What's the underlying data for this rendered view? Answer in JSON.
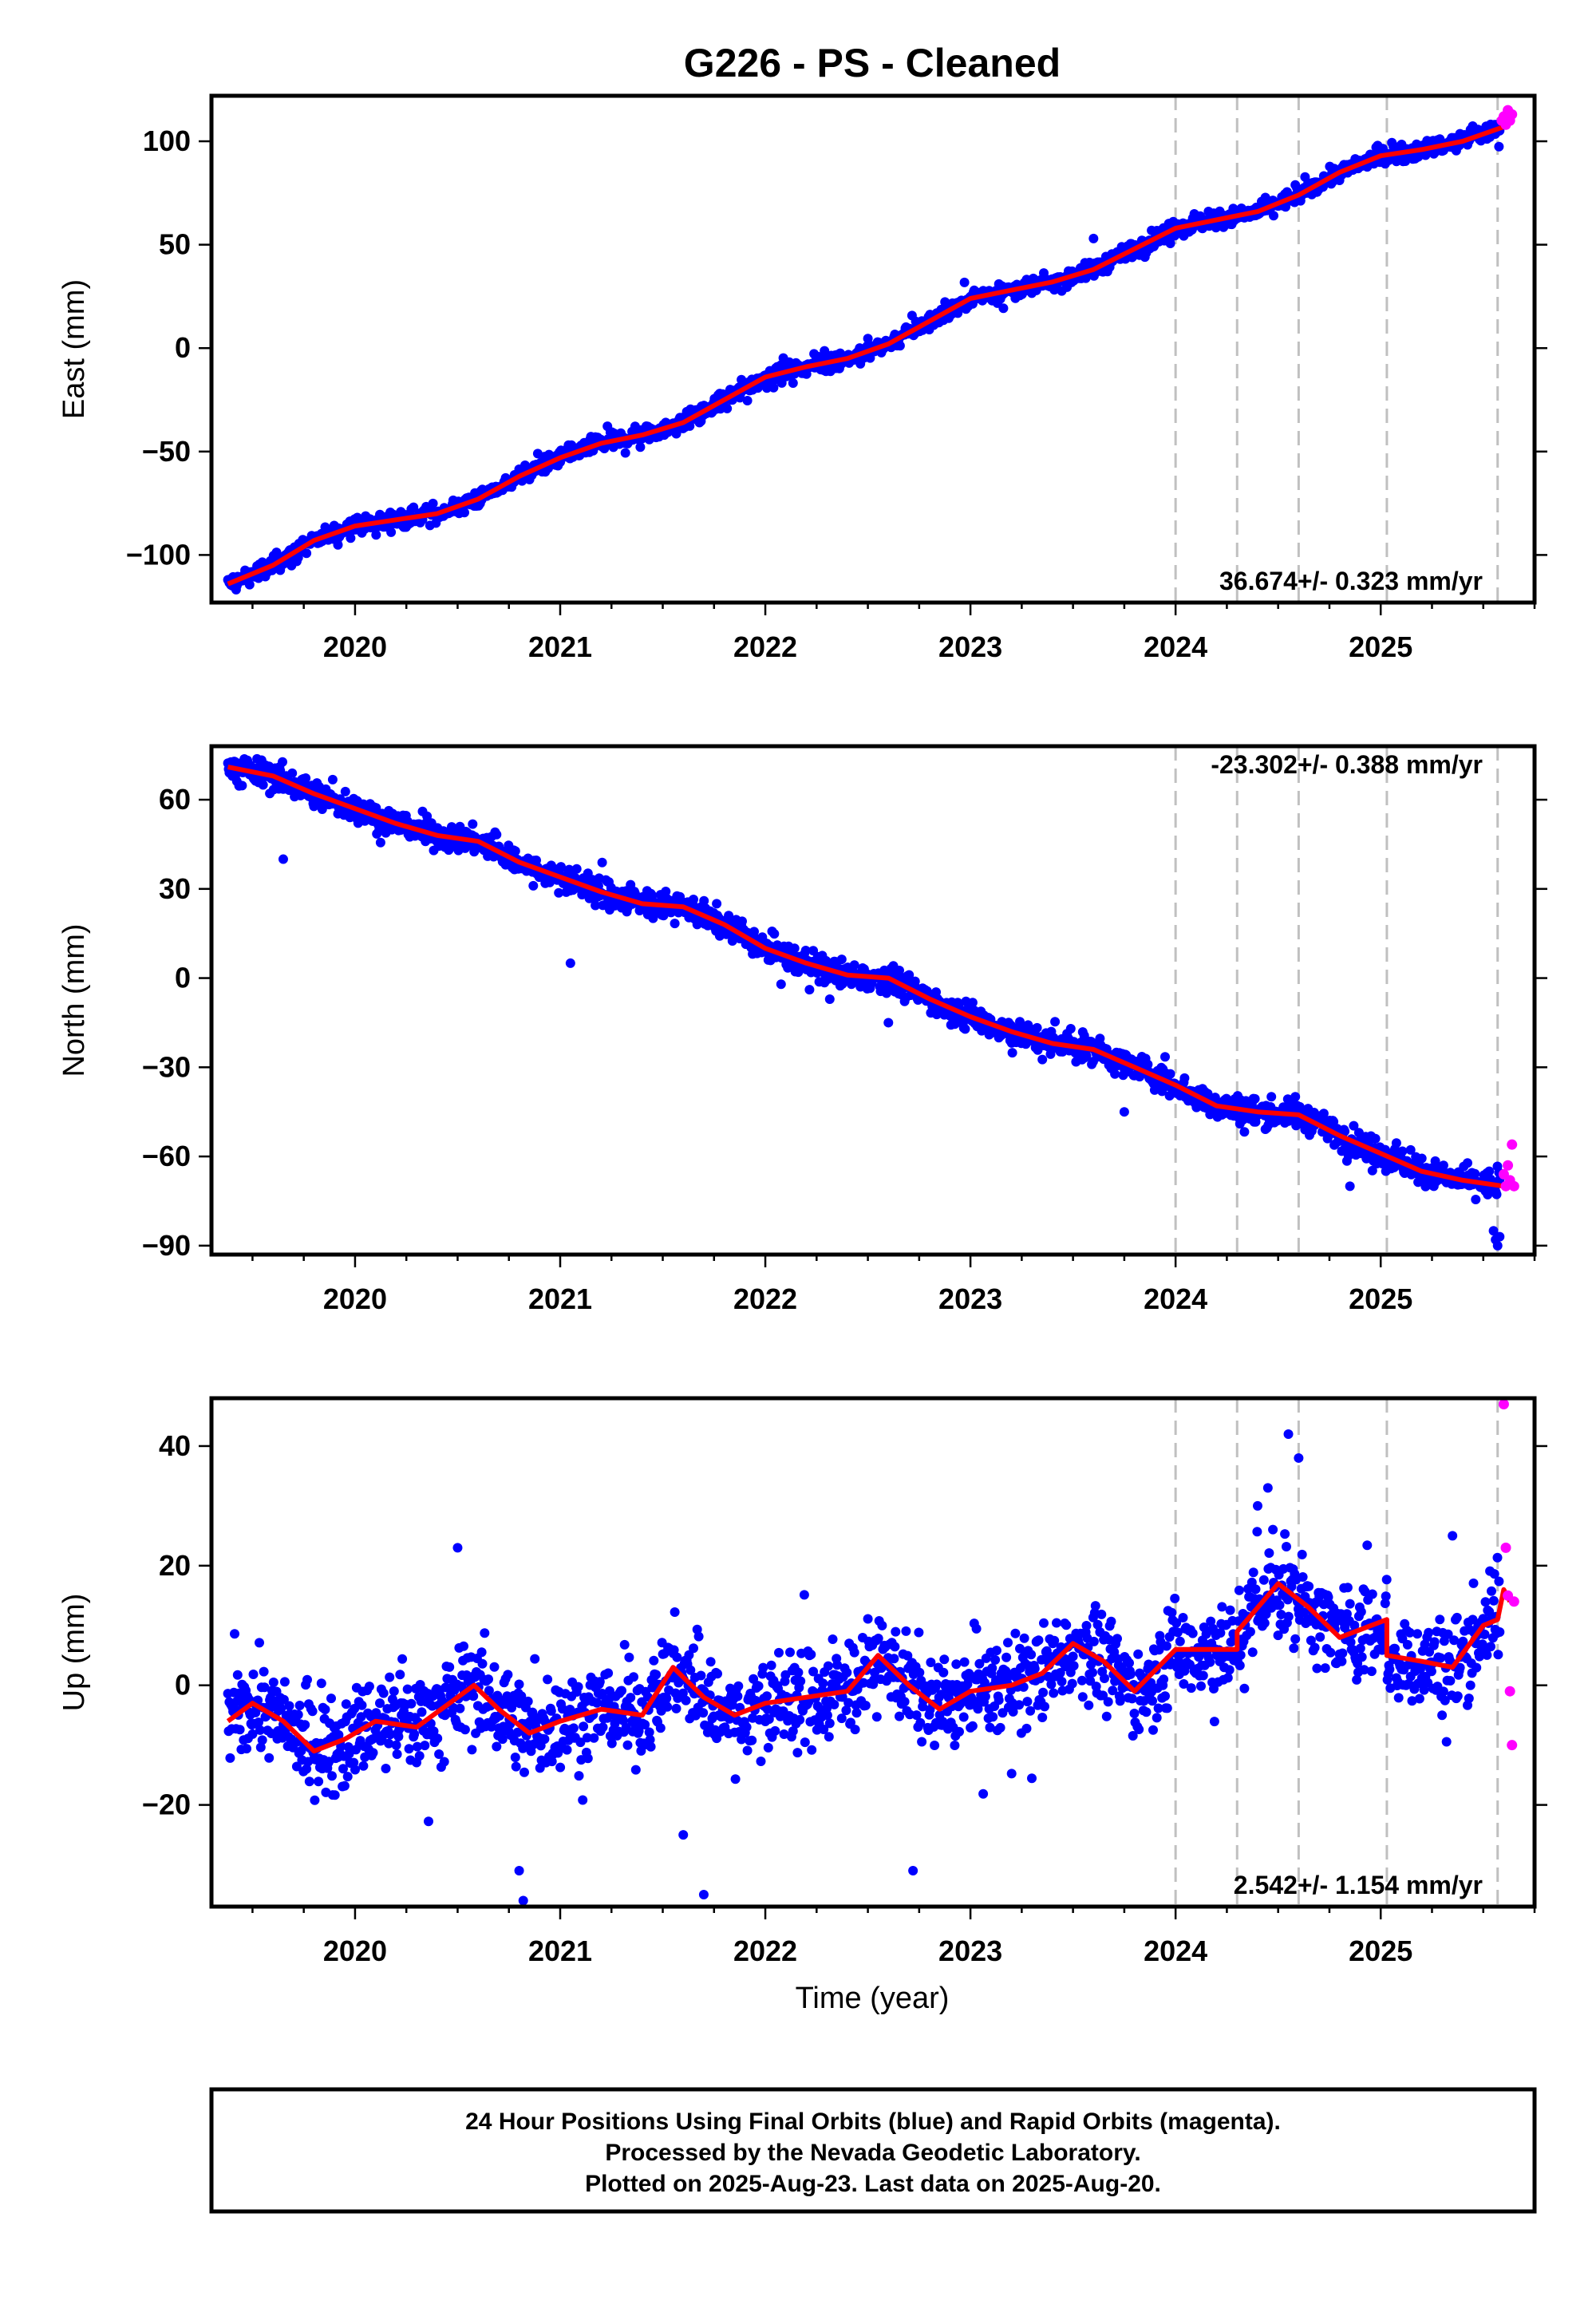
{
  "title": "G226  - PS - Cleaned",
  "colors": {
    "final_orbits": "#0000ff",
    "rapid_orbits": "#ff00ff",
    "model_line": "#ff0000",
    "event_lines": "#c0c0c0"
  },
  "x_axis": {
    "label": "Time (year)",
    "range": [
      2019.3,
      2025.75
    ],
    "ticks": [
      2020,
      2021,
      2022,
      2023,
      2024,
      2025
    ],
    "tick_labels": [
      "2020",
      "2021",
      "2022",
      "2023",
      "2024",
      "2025"
    ]
  },
  "event_lines": [
    2024.0,
    2024.3,
    2024.6,
    2025.03,
    2025.57
  ],
  "panels": [
    {
      "ylabel": "East (mm)",
      "ylim": [
        -123,
        122
      ],
      "yticks": [
        -100,
        -50,
        0,
        50,
        100
      ],
      "ytick_labels": [
        "−100",
        "−50",
        "0",
        "50",
        "100"
      ],
      "rate_label": "36.674+/- 0.323 mm/yr",
      "rate_position": "bottom-right",
      "legend_series": {
        "final": "final orbits",
        "rapid": "rapid orbits",
        "model": "model"
      },
      "model": [
        [
          2019.38,
          -114
        ],
        [
          2019.6,
          -105
        ],
        [
          2019.8,
          -93
        ],
        [
          2020.0,
          -86
        ],
        [
          2020.2,
          -83
        ],
        [
          2020.4,
          -80
        ],
        [
          2020.6,
          -73
        ],
        [
          2020.8,
          -62
        ],
        [
          2021.0,
          -53
        ],
        [
          2021.2,
          -46
        ],
        [
          2021.4,
          -42
        ],
        [
          2021.6,
          -36
        ],
        [
          2021.8,
          -25
        ],
        [
          2022.0,
          -14
        ],
        [
          2022.2,
          -9
        ],
        [
          2022.4,
          -5
        ],
        [
          2022.6,
          2
        ],
        [
          2022.8,
          13
        ],
        [
          2023.0,
          24
        ],
        [
          2023.2,
          28
        ],
        [
          2023.4,
          32
        ],
        [
          2023.6,
          38
        ],
        [
          2023.8,
          48
        ],
        [
          2024.0,
          58
        ],
        [
          2024.2,
          62
        ],
        [
          2024.4,
          66
        ],
        [
          2024.6,
          74
        ],
        [
          2024.8,
          85
        ],
        [
          2025.0,
          93
        ],
        [
          2025.2,
          96
        ],
        [
          2025.4,
          100
        ],
        [
          2025.6,
          107
        ]
      ],
      "noise": 2.8,
      "outliers": [
        [
          2023.6,
          53
        ]
      ],
      "rapid": [
        [
          2025.59,
          110
        ],
        [
          2025.6,
          112
        ],
        [
          2025.61,
          108
        ],
        [
          2025.62,
          115
        ],
        [
          2025.63,
          110
        ],
        [
          2025.64,
          113
        ]
      ]
    },
    {
      "ylabel": "North (mm)",
      "ylim": [
        -93,
        78
      ],
      "yticks": [
        -90,
        -60,
        -30,
        0,
        30,
        60
      ],
      "ytick_labels": [
        "−90",
        "−60",
        "−30",
        "0",
        "30",
        "60"
      ],
      "rate_label": "-23.302+/- 0.388 mm/yr",
      "rate_position": "top-right",
      "legend_series": {
        "final": "final orbits",
        "rapid": "rapid orbits",
        "model": "model"
      },
      "model": [
        [
          2019.38,
          71
        ],
        [
          2019.6,
          68
        ],
        [
          2019.8,
          62
        ],
        [
          2020.0,
          57
        ],
        [
          2020.2,
          52
        ],
        [
          2020.4,
          48
        ],
        [
          2020.6,
          46
        ],
        [
          2020.8,
          39
        ],
        [
          2021.0,
          34
        ],
        [
          2021.2,
          29
        ],
        [
          2021.4,
          25
        ],
        [
          2021.6,
          24
        ],
        [
          2021.8,
          18
        ],
        [
          2022.0,
          10
        ],
        [
          2022.2,
          5
        ],
        [
          2022.4,
          1
        ],
        [
          2022.6,
          0
        ],
        [
          2022.8,
          -7
        ],
        [
          2023.0,
          -13
        ],
        [
          2023.2,
          -18
        ],
        [
          2023.4,
          -22
        ],
        [
          2023.6,
          -24
        ],
        [
          2023.8,
          -30
        ],
        [
          2024.0,
          -36
        ],
        [
          2024.2,
          -43
        ],
        [
          2024.4,
          -45
        ],
        [
          2024.6,
          -46
        ],
        [
          2024.8,
          -53
        ],
        [
          2025.0,
          -59
        ],
        [
          2025.2,
          -65
        ],
        [
          2025.4,
          -68
        ],
        [
          2025.6,
          -70
        ]
      ],
      "noise": 3.2,
      "outliers": [
        [
          2019.65,
          40
        ],
        [
          2022.6,
          -15
        ],
        [
          2023.75,
          -45
        ],
        [
          2025.55,
          -85
        ],
        [
          2025.56,
          -88
        ],
        [
          2025.57,
          -90
        ],
        [
          2025.58,
          -87
        ],
        [
          2024.85,
          -70
        ],
        [
          2021.05,
          5
        ]
      ],
      "rapid": [
        [
          2025.6,
          -66
        ],
        [
          2025.61,
          -70
        ],
        [
          2025.62,
          -63
        ],
        [
          2025.63,
          -68
        ],
        [
          2025.64,
          -56
        ],
        [
          2025.65,
          -70
        ]
      ]
    },
    {
      "ylabel": "Up (mm)",
      "ylim": [
        -37,
        48
      ],
      "yticks": [
        -20,
        0,
        20,
        40
      ],
      "ytick_labels": [
        "−20",
        "0",
        "20",
        "40"
      ],
      "rate_label": "2.542+/- 1.154 mm/yr",
      "rate_position": "bottom-right",
      "legend_series": {
        "final": "final orbits",
        "rapid": "rapid orbits",
        "model": "model"
      },
      "model": [
        [
          2019.38,
          -6
        ],
        [
          2019.5,
          -3
        ],
        [
          2019.65,
          -6
        ],
        [
          2019.8,
          -11
        ],
        [
          2019.95,
          -9
        ],
        [
          2020.1,
          -6
        ],
        [
          2020.3,
          -7
        ],
        [
          2020.5,
          -2
        ],
        [
          2020.58,
          0
        ],
        [
          2020.7,
          -4
        ],
        [
          2020.85,
          -8
        ],
        [
          2021.0,
          -6
        ],
        [
          2021.2,
          -4
        ],
        [
          2021.4,
          -5
        ],
        [
          2021.55,
          3
        ],
        [
          2021.7,
          -2
        ],
        [
          2021.85,
          -5
        ],
        [
          2022.0,
          -3
        ],
        [
          2022.2,
          -2
        ],
        [
          2022.4,
          -1
        ],
        [
          2022.55,
          5
        ],
        [
          2022.7,
          0
        ],
        [
          2022.85,
          -4
        ],
        [
          2023.0,
          -1
        ],
        [
          2023.2,
          0
        ],
        [
          2023.35,
          2
        ],
        [
          2023.5,
          7
        ],
        [
          2023.65,
          4
        ],
        [
          2023.8,
          -1
        ],
        [
          2024.0,
          6
        ],
        [
          2024.15,
          6
        ],
        [
          2024.3,
          6
        ],
        [
          2024.3,
          9
        ],
        [
          2024.5,
          17
        ],
        [
          2024.65,
          13
        ],
        [
          2024.8,
          8
        ],
        [
          2025.03,
          11
        ],
        [
          2025.03,
          5
        ],
        [
          2025.2,
          4
        ],
        [
          2025.35,
          3
        ],
        [
          2025.5,
          10
        ],
        [
          2025.57,
          11
        ],
        [
          2025.6,
          16
        ],
        [
          2025.63,
          14
        ]
      ],
      "noise": 5.5,
      "outliers": [
        [
          2020.5,
          23
        ],
        [
          2020.8,
          -31
        ],
        [
          2020.82,
          -36
        ],
        [
          2021.6,
          -25
        ],
        [
          2021.7,
          -35
        ],
        [
          2022.72,
          -31
        ],
        [
          2024.55,
          42
        ],
        [
          2024.6,
          38
        ],
        [
          2024.45,
          33
        ],
        [
          2024.4,
          30
        ],
        [
          2025.35,
          25
        ]
      ],
      "rapid": [
        [
          2025.6,
          47
        ],
        [
          2025.61,
          23
        ],
        [
          2025.62,
          15
        ],
        [
          2025.63,
          -1
        ],
        [
          2025.64,
          -10
        ],
        [
          2025.65,
          14
        ]
      ]
    }
  ],
  "footer": {
    "line1": "24 Hour Positions Using Final Orbits (blue) and Rapid Orbits (magenta).",
    "line2": "Processed by the Nevada Geodetic Laboratory.",
    "line3": "Plotted on 2025-Aug-23. Last data on 2025-Aug-20."
  }
}
